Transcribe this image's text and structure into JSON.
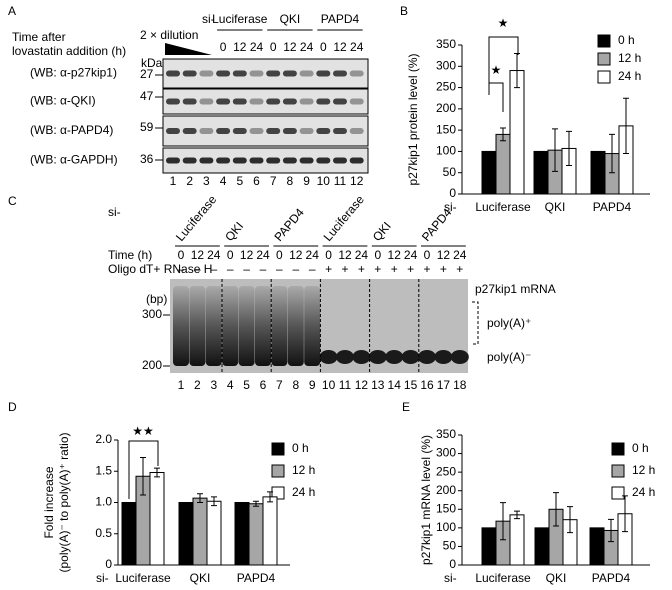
{
  "chart_data": [
    {
      "type": "bar",
      "panel": "B",
      "ylabel": [
        "p27kip1 protein level (%)"
      ],
      "category_prefix": "si-",
      "categories": [
        "Luciferase",
        "QKI",
        "PAPD4"
      ],
      "series": [
        {
          "name": "0 h",
          "color": "#000000",
          "values": [
            100,
            100,
            100
          ]
        },
        {
          "name": "12 h",
          "color": "#a6a6a6",
          "values": [
            140,
            103,
            95
          ],
          "errors": [
            15,
            50,
            45
          ]
        },
        {
          "name": "24 h",
          "color": "#ffffff",
          "values": [
            290,
            107,
            160
          ],
          "errors": [
            40,
            40,
            65
          ]
        }
      ],
      "ylim": [
        0,
        350
      ],
      "yticks": [
        0,
        50,
        100,
        150,
        200,
        250,
        300,
        350
      ],
      "annotations": [
        "★",
        "★"
      ]
    },
    {
      "type": "bar",
      "panel": "D",
      "ylabel": [
        "Fold increase",
        "(poly(A)⁻ to poly(A)⁺ ratio)"
      ],
      "category_prefix": "si-",
      "categories": [
        "Luciferase",
        "QKI",
        "PAPD4"
      ],
      "series": [
        {
          "name": "0 h",
          "color": "#000000",
          "values": [
            1.0,
            1.0,
            1.0
          ]
        },
        {
          "name": "12 h",
          "color": "#a6a6a6",
          "values": [
            1.42,
            1.07,
            0.98
          ],
          "errors": [
            0.3,
            0.07,
            0.04
          ]
        },
        {
          "name": "24 h",
          "color": "#ffffff",
          "values": [
            1.48,
            1.02,
            1.09
          ],
          "errors": [
            0.07,
            0.07,
            0.08
          ]
        }
      ],
      "ylim": [
        0,
        2.0
      ],
      "yticks": [
        0,
        0.5,
        {
          "value": 1.0,
          "label": "1.0"
        },
        1.5,
        {
          "value": 2.0,
          "label": "2.0"
        }
      ],
      "annotations": [
        "★★"
      ]
    },
    {
      "type": "bar",
      "panel": "E",
      "ylabel": [
        "p27kip1 mRNA level (%)"
      ],
      "category_prefix": "si-",
      "categories": [
        "Luciferase",
        "QKI",
        "PAPD4"
      ],
      "series": [
        {
          "name": "0 h",
          "color": "#000000",
          "values": [
            100,
            100,
            100
          ]
        },
        {
          "name": "12 h",
          "color": "#a6a6a6",
          "values": [
            118,
            150,
            93
          ],
          "errors": [
            50,
            45,
            30
          ]
        },
        {
          "name": "24 h",
          "color": "#ffffff",
          "values": [
            135,
            122,
            138
          ],
          "errors": [
            10,
            35,
            48
          ]
        }
      ],
      "ylim": [
        0,
        350
      ],
      "yticks": [
        0,
        50,
        100,
        150,
        200,
        250,
        300,
        350
      ],
      "annotations": []
    }
  ],
  "blots": {
    "A": {
      "panel": "A",
      "time_label": [
        "Time after",
        "lovastatin addition (h)"
      ],
      "dilution": "2 × dilution",
      "si": "si-",
      "groups": [
        "Luciferase",
        "QKI",
        "PAPD4"
      ],
      "times": [
        0,
        12,
        24
      ],
      "kda": "kDa",
      "rows": [
        {
          "label": "(WB: α-p27kip1)",
          "marker": 27
        },
        {
          "label": "(WB: α-QKI)",
          "marker": 47
        },
        {
          "label": "(WB: α-PAPD4)",
          "marker": 59
        },
        {
          "label": "(WB: α-GAPDH)",
          "marker": 36
        }
      ],
      "lanes": [
        1,
        2,
        3,
        4,
        5,
        6,
        7,
        8,
        9,
        10,
        11,
        12
      ]
    },
    "C": {
      "panel": "C",
      "si": "si-",
      "groups": [
        "Luciferase",
        "QKI",
        "PAPD4",
        "Luciferase",
        "QKI",
        "PAPD4"
      ],
      "time_label": "Time (h)",
      "times": [
        0,
        12,
        24
      ],
      "treatment": "Oligo dT+ RNase H",
      "signs": [
        "–",
        "–",
        "–",
        "–",
        "–",
        "–",
        "–",
        "–",
        "–",
        "+",
        "+",
        "+",
        "+",
        "+",
        "+",
        "+",
        "+",
        "+"
      ],
      "bp_unit": "(bp)",
      "markers": [
        300,
        200
      ],
      "right_labels": [
        "p27kip1 mRNA",
        "poly(A)⁺",
        "poly(A)⁻"
      ],
      "lanes": [
        1,
        2,
        3,
        4,
        5,
        6,
        7,
        8,
        9,
        10,
        11,
        12,
        13,
        14,
        15,
        16,
        17,
        18
      ]
    }
  }
}
